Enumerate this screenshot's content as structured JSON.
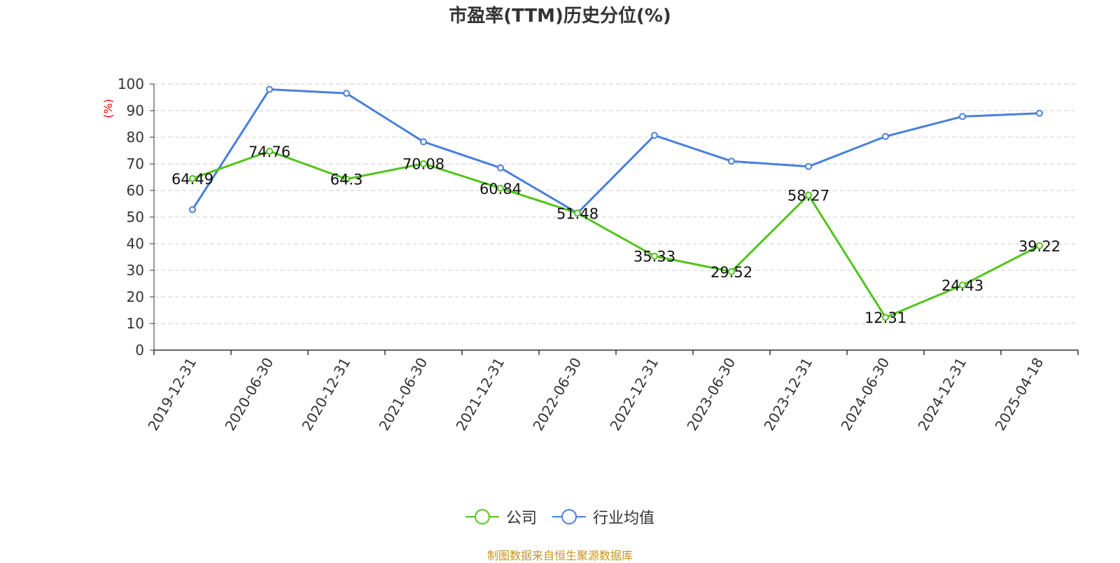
{
  "title": "市盈率(TTM)历史分位(%)",
  "source": "制图数据来自恒生聚源数据库",
  "chart_data": {
    "type": "line",
    "title": "市盈率(TTM)历史分位(%)",
    "ylabel": "(%)",
    "xlabel": "",
    "ylim": [
      0,
      100
    ],
    "yticks": [
      0,
      10,
      20,
      30,
      40,
      50,
      60,
      70,
      80,
      90,
      100
    ],
    "grid": true,
    "legend_position": "bottom-center",
    "categories": [
      "2019-12-31",
      "2020-06-30",
      "2020-12-31",
      "2021-06-30",
      "2021-12-31",
      "2022-06-30",
      "2022-12-31",
      "2023-06-30",
      "2023-12-31",
      "2024-06-30",
      "2024-12-31",
      "2025-04-18"
    ],
    "series": [
      {
        "name": "公司",
        "color": "#52c41a",
        "values": [
          64.49,
          74.76,
          64.3,
          70.08,
          60.84,
          51.48,
          35.33,
          29.52,
          58.27,
          12.31,
          24.43,
          39.22
        ],
        "data_labels": [
          "64.49",
          "74.76",
          "64.3",
          "70.08",
          "60.84",
          "51.48",
          "35.33",
          "29.52",
          "58.27",
          "12.31",
          "24.43",
          "39.22"
        ]
      },
      {
        "name": "行业均值",
        "color": "#4a7fdc",
        "values": [
          52.8,
          98.0,
          96.5,
          78.3,
          68.5,
          51.5,
          80.7,
          71.0,
          69.0,
          80.3,
          87.8,
          89.0
        ]
      }
    ]
  },
  "legend": {
    "items": [
      {
        "label": "公司",
        "color": "#52c41a"
      },
      {
        "label": "行业均值",
        "color": "#4a7fdc"
      }
    ]
  }
}
